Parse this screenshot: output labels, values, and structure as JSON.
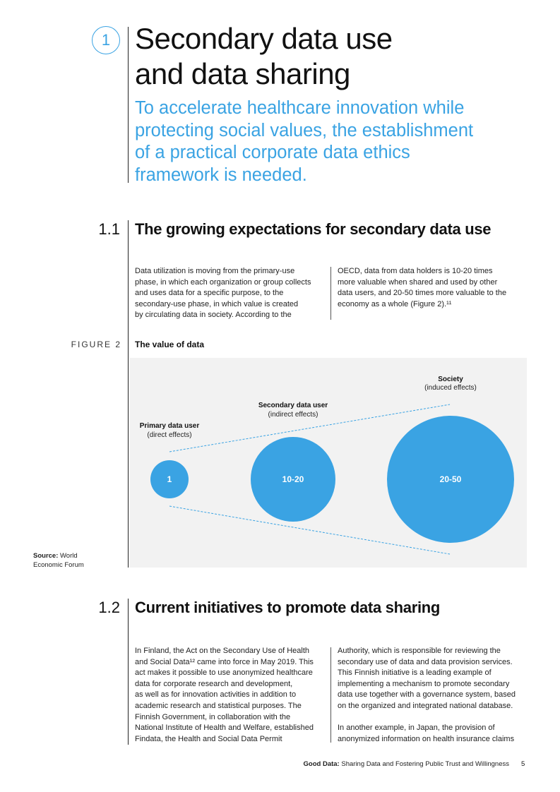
{
  "chapter": {
    "number": "1",
    "title_lines": [
      "Secondary data use",
      "and data sharing"
    ],
    "subtitle_lines": [
      "To accelerate healthcare innovation while",
      "protecting social values, the establishment",
      "of a practical corporate data ethics",
      "framework is needed."
    ]
  },
  "section_1_1": {
    "number": "1.1",
    "title": "The growing expectations for secondary data use",
    "left_col": [
      "Data utilization is moving from the primary-use",
      "phase, in which each organization or group collects",
      "and uses data for a specific purpose, to the",
      "secondary-use phase, in which value is created",
      "by circulating data in society. According to the"
    ],
    "right_col": [
      "OECD, data from data holders is 10-20 times",
      "more valuable when shared and used by other",
      "data users, and 20-50 times more valuable to the",
      "economy as a whole (Figure 2).¹¹"
    ]
  },
  "figure": {
    "label": "FIGURE 2",
    "title": "The value of data",
    "color": "#3aa3e3",
    "background": "#f2f2f2",
    "nodes": [
      {
        "name": "Primary data user",
        "sub": "(direct effects)",
        "value": "1"
      },
      {
        "name": "Secondary data user",
        "sub": "(indirect effects)",
        "value": "10-20"
      },
      {
        "name": "Society",
        "sub": "(induced effects)",
        "value": "20-50"
      }
    ],
    "source_label": "Source:",
    "source_lines": [
      " World",
      "Economic Forum"
    ]
  },
  "section_1_2": {
    "number": "1.2",
    "title": "Current initiatives to promote data sharing",
    "left_col": [
      "In Finland, the Act on the Secondary Use of Health",
      "and Social Data¹² came into force in May 2019. This",
      "act makes it possible to use anonymized healthcare",
      "data for corporate research and development,",
      "as well as for innovation activities in addition to",
      "academic research and statistical purposes. The",
      "Finnish Government, in collaboration with the",
      "National Institute of Health and Welfare, established",
      "Findata, the Health and Social Data Permit"
    ],
    "right_col": [
      "Authority, which is responsible for reviewing the",
      "secondary use of data and data provision services.",
      "This Finnish initiative is a leading example of",
      "implementing a mechanism to promote secondary",
      "data use together with a governance system, based",
      "on the organized and integrated national database.",
      "",
      "In another example, in Japan, the provision of",
      "anonymized information on health insurance claims"
    ]
  },
  "footer": {
    "bold": "Good Data:",
    "text": " Sharing Data and Fostering Public Trust and Willingness",
    "page": "5"
  }
}
